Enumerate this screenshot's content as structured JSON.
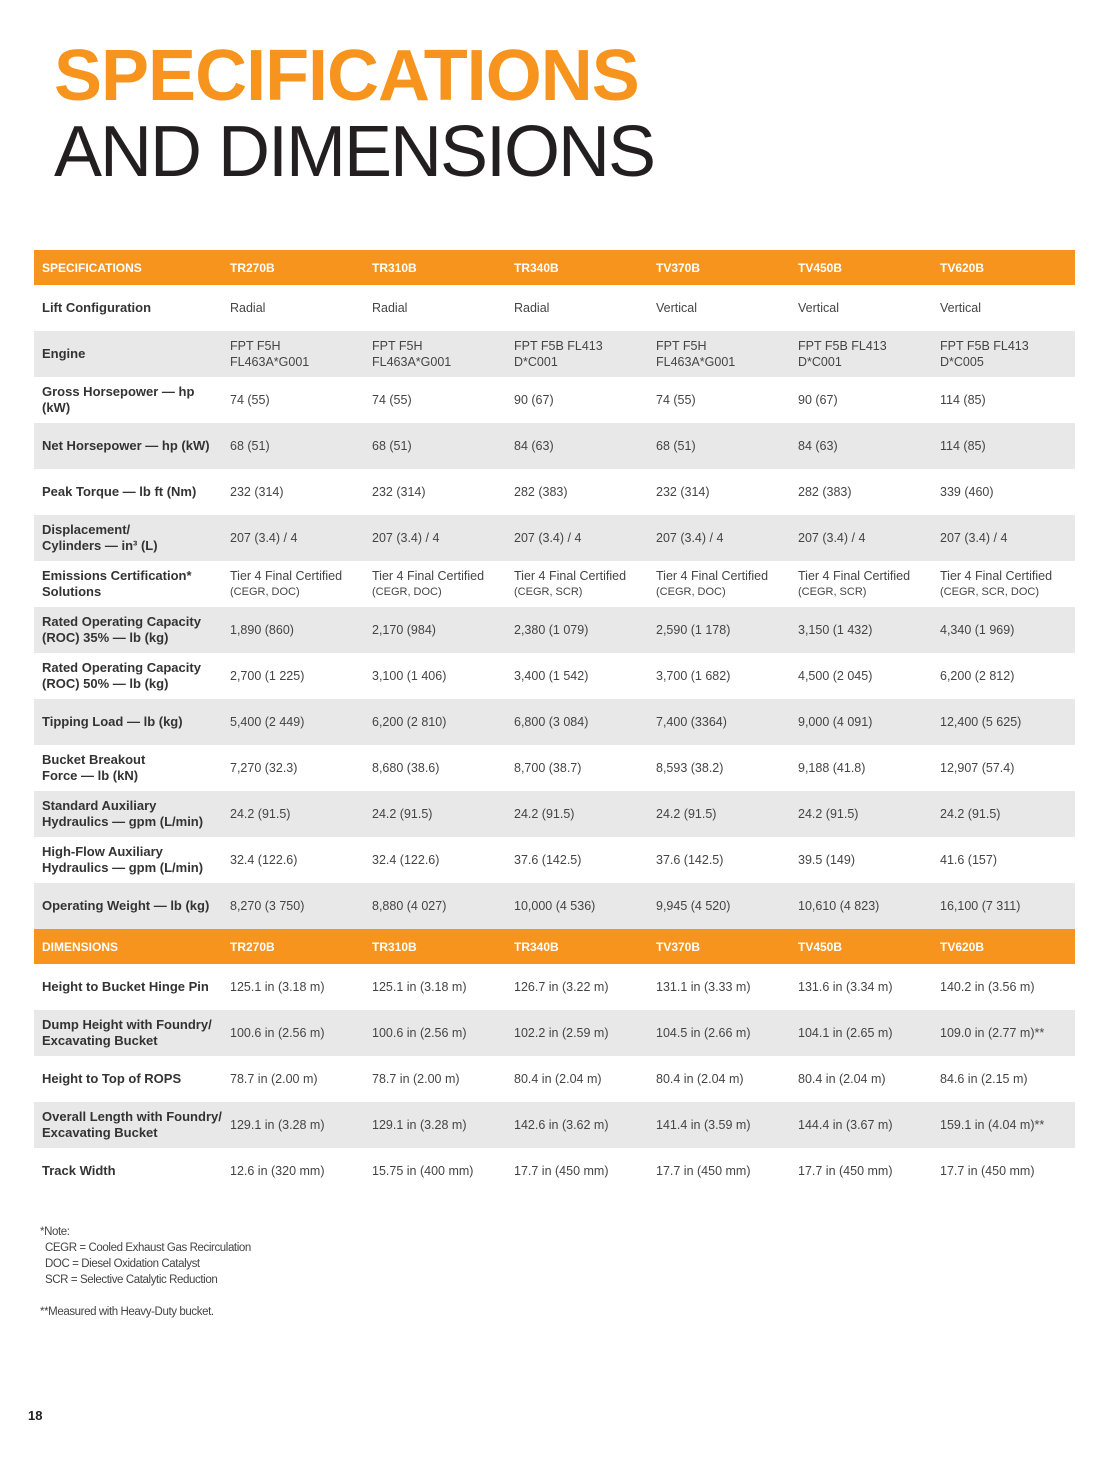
{
  "header": {
    "title_line1": "SPECIFICATIONS",
    "title_line2": "AND DIMENSIONS"
  },
  "tables": [
    {
      "header": [
        "SPECIFICATIONS",
        "TR270B",
        "TR310B",
        "TR340B",
        "TV370B",
        "TV450B",
        "TV620B"
      ],
      "rows": [
        [
          "Lift Configuration",
          "Radial",
          "Radial",
          "Radial",
          "Vertical",
          "Vertical",
          "Vertical"
        ],
        [
          "Engine",
          [
            "FPT F5H",
            "FL463A*G001"
          ],
          [
            "FPT F5H",
            "FL463A*G001"
          ],
          [
            "FPT F5B FL413",
            "D*C001"
          ],
          [
            "FPT F5H",
            "FL463A*G001"
          ],
          [
            "FPT F5B FL413",
            "D*C001"
          ],
          [
            "FPT F5B FL413",
            "D*C005"
          ]
        ],
        [
          [
            "Gross Horsepower — hp",
            "(kW)"
          ],
          "74 (55)",
          "74 (55)",
          "90 (67)",
          "74 (55)",
          "90 (67)",
          "114 (85)"
        ],
        [
          "Net Horsepower — hp (kW)",
          "68 (51)",
          "68 (51)",
          "84 (63)",
          "68 (51)",
          "84 (63)",
          "114 (85)"
        ],
        [
          "Peak Torque — lb ft (Nm)",
          "232 (314)",
          "232 (314)",
          "282 (383)",
          "232 (314)",
          "282 (383)",
          "339 (460)"
        ],
        [
          [
            "Displacement/",
            "Cylinders — in³ (L)"
          ],
          "207 (3.4) / 4",
          "207 (3.4) / 4",
          "207 (3.4) / 4",
          "207 (3.4) / 4",
          "207 (3.4) / 4",
          "207 (3.4) / 4"
        ],
        [
          [
            "Emissions Certification*",
            "Solutions"
          ],
          [
            "Tier 4 Final Certified",
            "(CEGR, DOC)"
          ],
          [
            "Tier 4 Final Certified",
            "(CEGR, DOC)"
          ],
          [
            "Tier 4 Final Certified",
            "(CEGR, SCR)"
          ],
          [
            "Tier 4 Final Certified",
            "(CEGR, DOC)"
          ],
          [
            "Tier 4 Final Certified",
            "(CEGR, SCR)"
          ],
          [
            "Tier 4 Final Certified",
            "(CEGR, SCR, DOC)"
          ]
        ],
        [
          [
            "Rated Operating Capacity",
            "(ROC) 35% — lb (kg)"
          ],
          "1,890 (860)",
          "2,170 (984)",
          "2,380 (1 079)",
          "2,590 (1 178)",
          "3,150 (1 432)",
          "4,340 (1 969)"
        ],
        [
          [
            "Rated Operating Capacity",
            "(ROC) 50% — lb (kg)"
          ],
          "2,700 (1 225)",
          "3,100 (1 406)",
          "3,400 (1 542)",
          "3,700 (1 682)",
          "4,500 (2 045)",
          "6,200 (2 812)"
        ],
        [
          "Tipping Load — lb (kg)",
          "5,400 (2 449)",
          "6,200 (2 810)",
          "6,800 (3 084)",
          "7,400 (3364)",
          "9,000 (4 091)",
          "12,400 (5 625)"
        ],
        [
          [
            "Bucket Breakout",
            "Force — lb (kN)"
          ],
          "7,270 (32.3)",
          "8,680 (38.6)",
          "8,700 (38.7)",
          "8,593 (38.2)",
          "9,188 (41.8)",
          "12,907 (57.4)"
        ],
        [
          [
            "Standard Auxiliary",
            "Hydraulics — gpm (L/min)"
          ],
          "24.2 (91.5)",
          "24.2 (91.5)",
          "24.2 (91.5)",
          "24.2 (91.5)",
          "24.2 (91.5)",
          "24.2 (91.5)"
        ],
        [
          [
            "High-Flow Auxiliary",
            "Hydraulics — gpm (L/min)"
          ],
          "32.4 (122.6)",
          "32.4 (122.6)",
          "37.6 (142.5)",
          "37.6 (142.5)",
          "39.5 (149)",
          "41.6 (157)"
        ],
        [
          "Operating Weight — lb (kg)",
          "8,270 (3 750)",
          "8,880 (4 027)",
          "10,000 (4 536)",
          "9,945 (4 520)",
          "10,610 (4 823)",
          "16,100 (7 311)"
        ]
      ]
    },
    {
      "header": [
        "DIMENSIONS",
        "TR270B",
        "TR310B",
        "TR340B",
        "TV370B",
        "TV450B",
        "TV620B"
      ],
      "rows": [
        [
          "Height to Bucket Hinge Pin",
          "125.1 in (3.18 m)",
          "125.1 in (3.18 m)",
          "126.7 in (3.22 m)",
          "131.1 in (3.33 m)",
          "131.6 in (3.34 m)",
          "140.2 in (3.56 m)"
        ],
        [
          [
            "Dump Height with Foundry/",
            "Excavating Bucket"
          ],
          "100.6 in (2.56 m)",
          "100.6 in (2.56 m)",
          "102.2 in (2.59 m)",
          "104.5 in (2.66 m)",
          "104.1 in (2.65 m)",
          "109.0 in (2.77 m)**"
        ],
        [
          "Height to Top of ROPS",
          "78.7 in (2.00 m)",
          "78.7 in (2.00 m)",
          "80.4 in (2.04 m)",
          "80.4 in (2.04 m)",
          "80.4 in (2.04 m)",
          "84.6 in (2.15 m)"
        ],
        [
          [
            "Overall Length with Foundry/",
            "Excavating Bucket"
          ],
          "129.1 in (3.28 m)",
          "129.1 in (3.28 m)",
          "142.6 in (3.62 m)",
          "141.4 in (3.59 m)",
          "144.4 in (3.67 m)",
          "159.1 in (4.04 m)**"
        ],
        [
          "Track Width",
          "12.6 in (320 mm)",
          "15.75 in (400 mm)",
          "17.7 in (450 mm)",
          "17.7 in (450 mm)",
          "17.7 in (450 mm)",
          "17.7 in (450 mm)"
        ]
      ]
    }
  ],
  "notes": {
    "heading": "*Note:",
    "lines": [
      "CEGR = Cooled Exhaust Gas Recirculation",
      "DOC = Diesel Oxidation Catalyst",
      "SCR = Selective Catalytic Reduction"
    ],
    "footnote": "**Measured with Heavy-Duty bucket."
  },
  "page_number": "18"
}
